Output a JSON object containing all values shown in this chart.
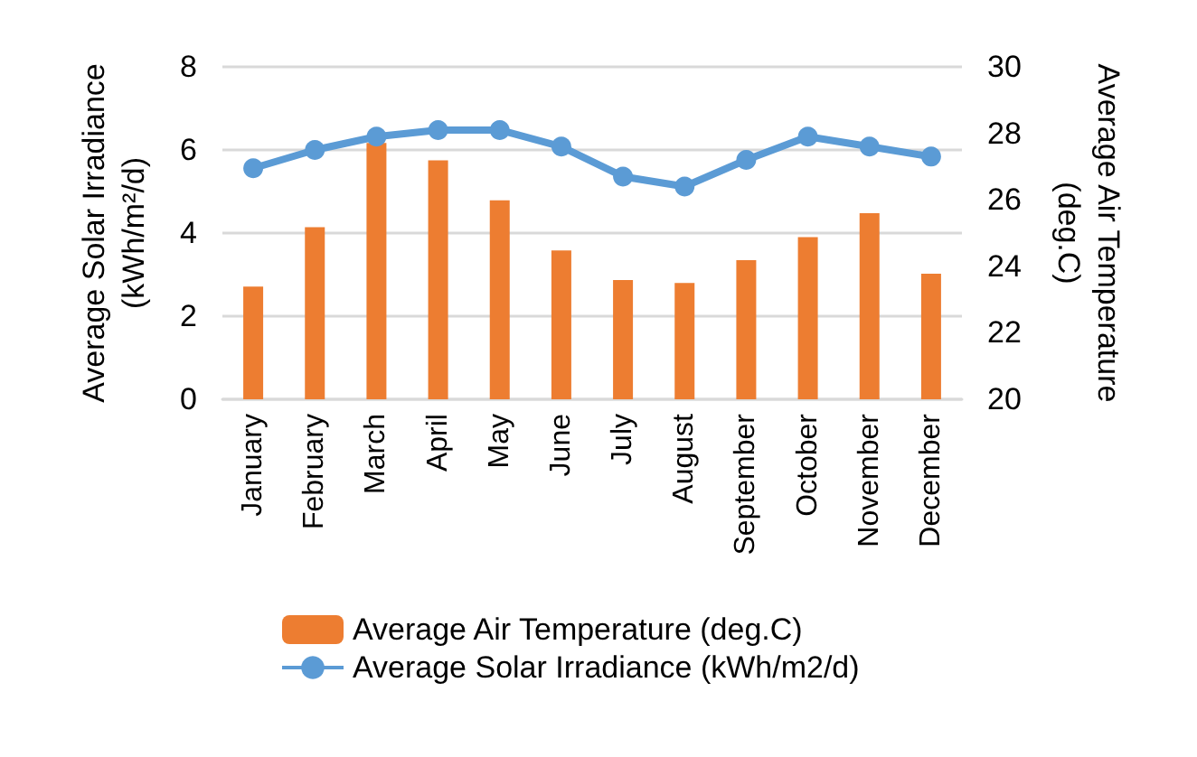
{
  "chart_data": {
    "type": "bar",
    "categories": [
      "January",
      "February",
      "March",
      "April",
      "May",
      "June",
      "July",
      "August",
      "September",
      "October",
      "November",
      "December"
    ],
    "ylabel": "Average Solar Irradiance (kWh/m²/d)",
    "y2label": "Average Air Temperature (deg.C)",
    "ylim": [
      0,
      8
    ],
    "yticks": [
      0,
      2,
      4,
      6,
      8
    ],
    "y2lim": [
      20,
      30
    ],
    "y2ticks": [
      20,
      22,
      24,
      26,
      28,
      30
    ],
    "grid": "y",
    "legend": "bottom",
    "series": [
      {
        "name": "Average Air Temperature (deg.C)",
        "color": "#ed7d31",
        "values": [
          2.71,
          4.14,
          6.17,
          5.75,
          4.79,
          3.58,
          2.87,
          2.8,
          3.35,
          3.9,
          4.48,
          3.02
        ]
      },
      {
        "name": "Average Solar Irradiance (kWh/m2/d)",
        "type": "line",
        "axis": "y2",
        "color": "#5b9bd5",
        "marker": "circle",
        "values": [
          26.95,
          27.5,
          27.9,
          28.1,
          28.1,
          27.6,
          26.7,
          26.4,
          27.2,
          27.9,
          27.6,
          27.3
        ]
      }
    ]
  }
}
